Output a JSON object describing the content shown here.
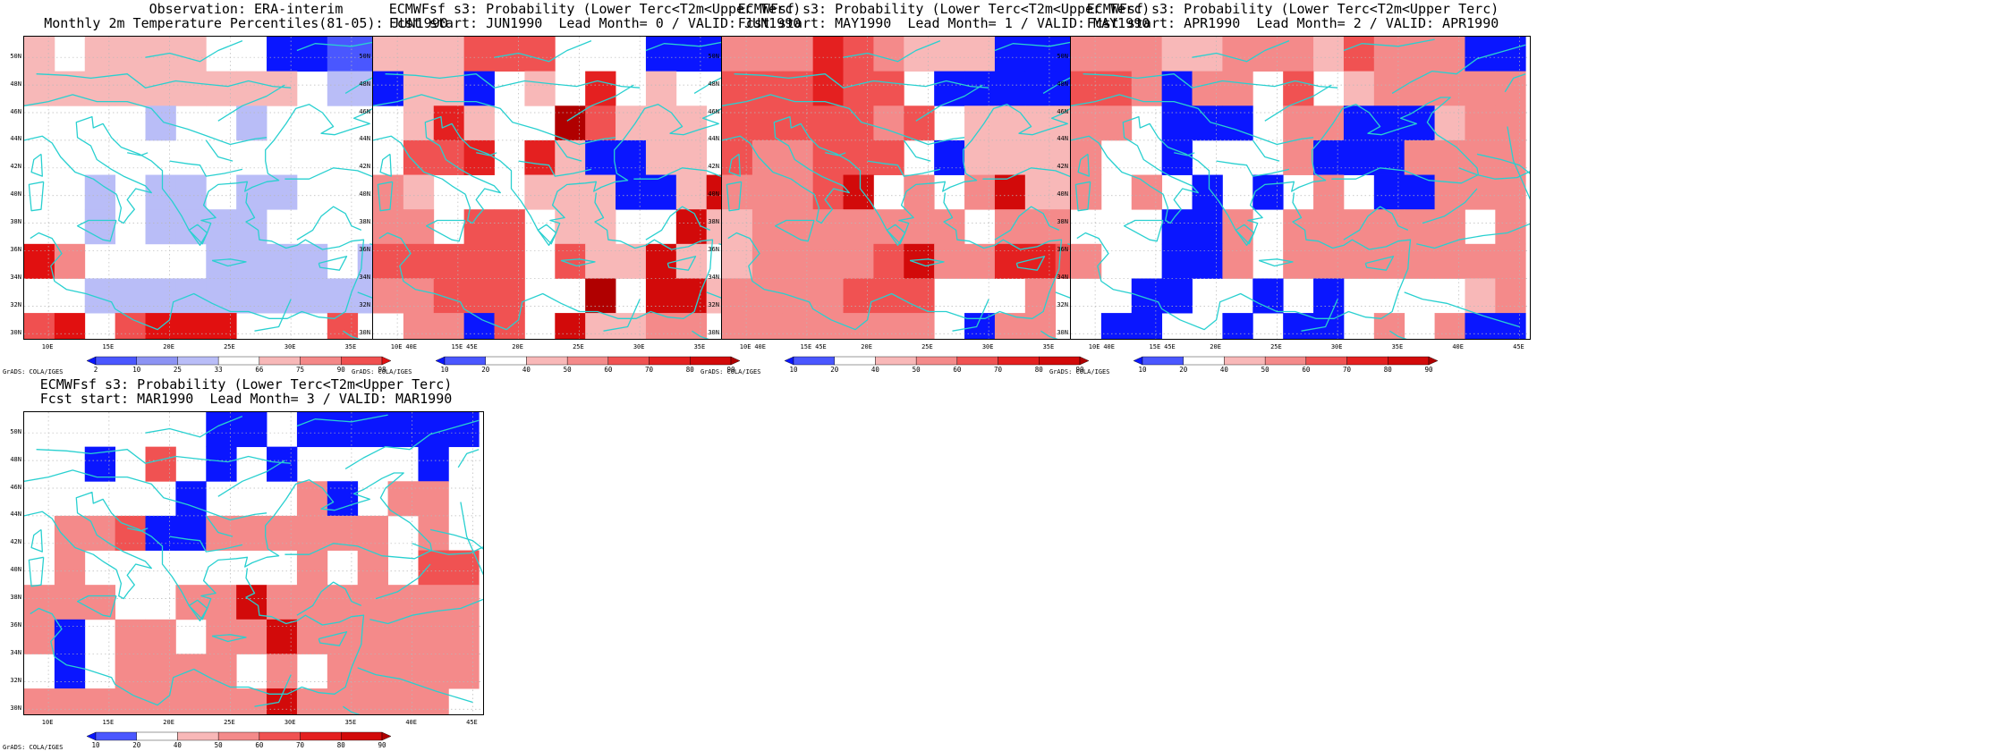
{
  "map_data": {
    "extent": {
      "lon": [
        8,
        46
      ],
      "lat": [
        29.5,
        51.5
      ]
    },
    "grid": {
      "lon_start": 8,
      "lat_top": 51.5,
      "cell_deg": 2.5,
      "cols": 15,
      "rows": 9
    },
    "x_ticks": [
      "10E",
      "15E",
      "20E",
      "25E",
      "30E",
      "35E",
      "40E",
      "45E"
    ],
    "y_ticks": [
      "30N",
      "32N",
      "34N",
      "36N",
      "38N",
      "40N",
      "42N",
      "44N",
      "46N",
      "48N",
      "50N"
    ],
    "coastline_color": "#29d0d0",
    "credit": "GrADS: COLA/IGES",
    "obs_colorbar": {
      "labels": [
        "2",
        "10",
        "25",
        "33",
        "66",
        "75",
        "90",
        "98"
      ],
      "colors": [
        "#0a16ff",
        "#4a57ff",
        "#8c93f3",
        "#b9bdf7",
        "#ffffff",
        "#f7b8b8",
        "#f48888",
        "#f05050",
        "#e11010"
      ]
    },
    "prob_colorbar": {
      "labels": [
        "10",
        "20",
        "40",
        "50",
        "60",
        "70",
        "80",
        "90"
      ],
      "colors": [
        "#0a16ff",
        "#4a57ff",
        "#ffffff",
        "#f8b8b8",
        "#f48a8a",
        "#f05252",
        "#e42020",
        "#d20a0a",
        "#b00000"
      ]
    },
    "panels": [
      {
        "id": "obs",
        "title1": "Observation: ERA-interim",
        "title2": "Monthly 2m Temperature Percentiles(81-05): JUN1990",
        "scale": "obs",
        "grid_values": [
          "4w4444ww0011222",
          "444444444w33233",
          "wwww3ww3wwwwwww",
          "wwwwwwwwwwwwwww",
          "ww3w33w33wwwwww",
          "ww3w3333wwwwwwx",
          "y5wwww3333w3wwx",
          "ww3333333333www",
          "xywxyyywwwxww3x"
        ]
      },
      {
        "id": "lead0",
        "title1": "ECMWFsf s3: Probability (Lower Terc<T2m<Upper Terc)",
        "title2": "Fcst start: JUN1990  Lead Month= 0 / VALID: JUN1990",
        "scale": "prob",
        "grid_values": [
          "222666333000004",
          "0220w2wpw2ww0pe",
          "w2p2wwd6222ww25",
          "w66pwp20022ww4w",
          "42555222002c442",
          "44566w22w3c2004",
          "666665622c2w444",
          "4466633d3cc2444",
          "w44065c22445w2w"
        ]
      },
      {
        "id": "lead1",
        "title1": "ECMWFsf s3: Probability (Lower Terc<T2m<Upper Terc)",
        "title2": "Fcst start: MAY1990  Lead Month= 1 / VALID: MAY1990",
        "scale": "prob",
        "grid_values": [
          "444p6422200000w",
          "666p66w00000000",
          "6666646w222200w",
          "644666w0222220w",
          "4446c54w4c22w44",
          "24444444w444444",
          "244446c44pp66w4",
          "4444666w554w444",
          "4444444w0445w4w"
        ]
      },
      {
        "id": "lead2",
        "title1": "ECMWFsf s3: Probability (Lower Terc<T2m<Upper Terc)",
        "title2": "Fcst start: APR1990  Lead Month= 2 / VALID: APR1990",
        "scale": "prob",
        "grid_values": [
          "444224442644400",
          "664044w6w244444",
          "44w000w44000244",
          "4ww0www40004444",
          "4w4w0w0w4w00444",
          "www004w444444w4",
          "4ww004w44444444",
          "ww00ww0w0wwww24",
          "w00ww0w00w4w400"
        ]
      },
      {
        "id": "lead3",
        "title1": "ECMWFsf s3: Probability (Lower Terc<T2m<Upper Terc)",
        "title2": "Fcst start: MAR1990  Lead Month= 3 / VALID: MAR1990",
        "scale": "prob",
        "grid_values": [
          "wwwwww00w000000",
          "ww0w6w0w0wwww0w",
          "wwwww0www40w44w",
          "w44600444444w4w",
          "w4wwwwwww4w4w66",
          "444ww44c4444444",
          "40w44w44c444444",
          "w0w4444w4w44444",
          "44444444c44444w"
        ]
      }
    ]
  }
}
